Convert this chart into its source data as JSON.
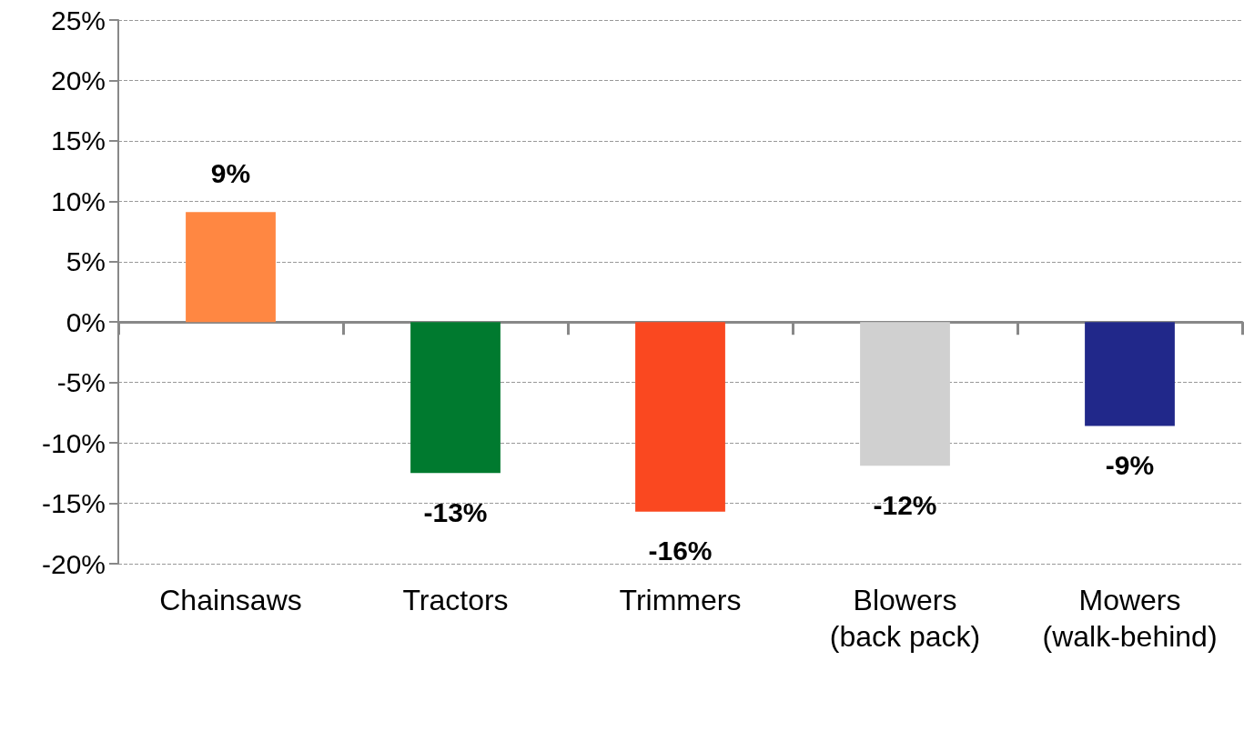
{
  "chart_data": {
    "type": "bar",
    "categories": [
      "Chainsaws",
      "Tractors",
      "Trimmers",
      "Blowers (back pack)",
      "Mowers (walk-behind)"
    ],
    "values": [
      9.1,
      -12.5,
      -15.7,
      -11.9,
      -8.6
    ],
    "value_labels": [
      "9%",
      "-13%",
      "-16%",
      "-12%",
      "-9%"
    ],
    "colors": [
      "#ff8742",
      "#007a2f",
      "#fa4820",
      "#d0d0d0",
      "#21288a"
    ],
    "ylim": [
      -20,
      25
    ],
    "yticks": [
      {
        "value": -20,
        "label": "-20%"
      },
      {
        "value": -15,
        "label": "-15%"
      },
      {
        "value": -10,
        "label": "-10%"
      },
      {
        "value": -5,
        "label": "-5%"
      },
      {
        "value": 0,
        "label": "0%"
      },
      {
        "value": 5,
        "label": "5%"
      },
      {
        "value": 10,
        "label": "10%"
      },
      {
        "value": 15,
        "label": "15%"
      },
      {
        "value": 20,
        "label": "20%"
      },
      {
        "value": 25,
        "label": "25%"
      }
    ],
    "grid": "y"
  }
}
